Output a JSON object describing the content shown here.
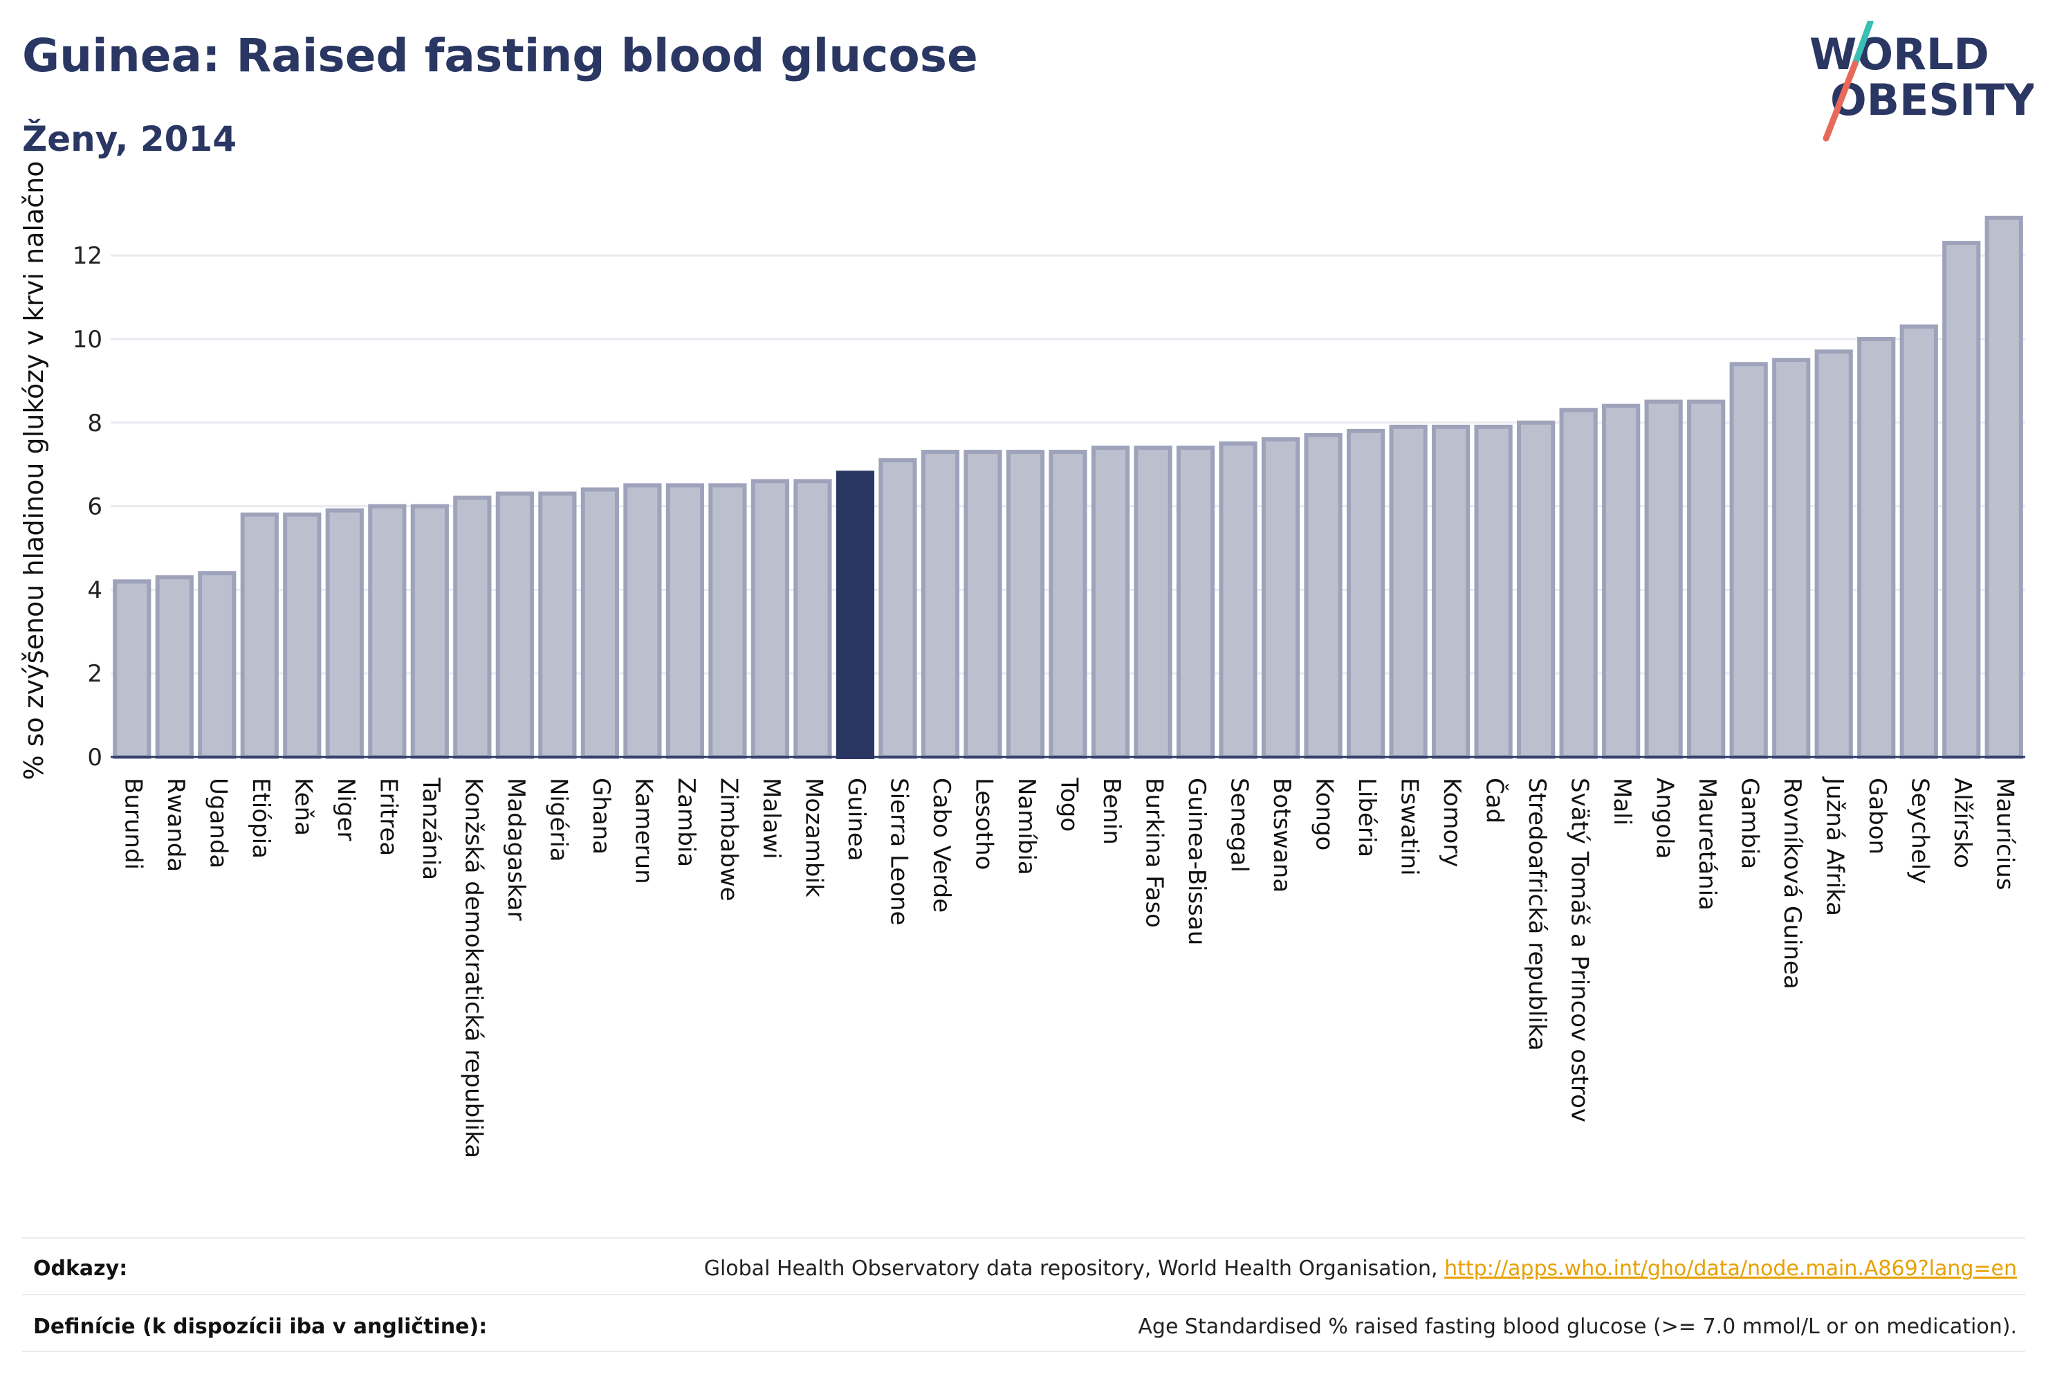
{
  "header": {
    "title": "Guinea: Raised fasting blood glucose",
    "subtitle": "Ženy, 2014"
  },
  "logo": {
    "line1": "WORLD",
    "line2": "OBESITY",
    "colors": {
      "text": "#2a3763",
      "slash_top": "#3bbfb4",
      "slash_bottom": "#e8685a"
    }
  },
  "colors": {
    "bar": "#bcc0ce",
    "bar_border": "#9ea3bb",
    "bar_highlight": "#2a3763",
    "grid": "#e9eaf0",
    "axis": "#2a3763"
  },
  "chart_data": {
    "type": "bar",
    "ylabel": "% so zvýšenou hladinou glukózy v krvi nalačno",
    "xlabel": "",
    "ylim": [
      0,
      13.5
    ],
    "yticks": [
      0,
      2,
      4,
      6,
      8,
      10,
      12
    ],
    "highlight": "Guinea",
    "grid": true,
    "categories": [
      "Burundi",
      "Rwanda",
      "Uganda",
      "Etiópia",
      "Keňa",
      "Niger",
      "Eritrea",
      "Tanzánia",
      "Konžská demokratická republika",
      "Madagaskar",
      "Nigéria",
      "Ghana",
      "Kamerun",
      "Zambia",
      "Zimbabwe",
      "Malawi",
      "Mozambik",
      "Guinea",
      "Sierra Leone",
      "Cabo Verde",
      "Lesotho",
      "Namíbia",
      "Togo",
      "Benin",
      "Burkina Faso",
      "Guinea-Bissau",
      "Senegal",
      "Botswana",
      "Kongo",
      "Libéria",
      "Eswatini",
      "Komory",
      "Čad",
      "Stredoafrická republika",
      "Svätý Tomáš a Princov ostrov",
      "Mali",
      "Angola",
      "Mauretánia",
      "Gambia",
      "Rovníková Guinea",
      "Južná Afrika",
      "Gabon",
      "Seychely",
      "Alžírsko",
      "Maurícius"
    ],
    "values": [
      4.2,
      4.3,
      4.4,
      5.8,
      5.8,
      5.9,
      6.0,
      6.0,
      6.2,
      6.3,
      6.3,
      6.4,
      6.5,
      6.5,
      6.5,
      6.6,
      6.6,
      6.8,
      7.1,
      7.3,
      7.3,
      7.3,
      7.3,
      7.4,
      7.4,
      7.4,
      7.5,
      7.6,
      7.7,
      7.8,
      7.9,
      7.9,
      7.9,
      8.0,
      8.3,
      8.4,
      8.5,
      8.5,
      9.4,
      9.5,
      9.7,
      10.0,
      10.3,
      12.3,
      12.9
    ]
  },
  "footer": {
    "references_label": "Odkazy:",
    "references_text": "Global Health Observatory data repository, World Health Organisation,",
    "references_link": "http://apps.who.int/gho/data/node.main.A869?lang=en",
    "definition_label": "Definície (k dispozícii iba v angličtine):",
    "definition_text": "Age Standardised % raised fasting blood glucose (>= 7.0 mmol/L or on medication)."
  }
}
